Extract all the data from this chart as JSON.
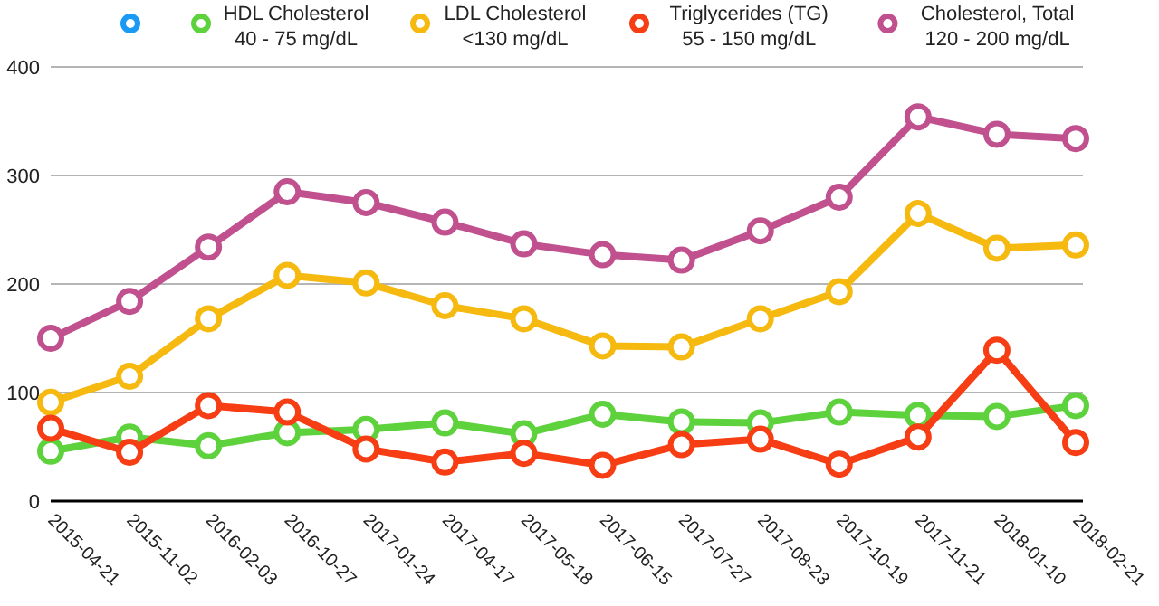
{
  "chart_data": {
    "type": "line",
    "categories": [
      "2015-04-21",
      "2015-11-02",
      "2016-02-03",
      "2016-10-27",
      "2017-01-24",
      "2017-04-17",
      "2017-05-18",
      "2017-06-15",
      "2017-07-27",
      "2017-08-23",
      "2017-10-19",
      "2017-11-21",
      "2018-01-10",
      "2018-02-21"
    ],
    "series": [
      {
        "color": "#1a9af5",
        "values": [
          null,
          null,
          null,
          null,
          null,
          null,
          null,
          null,
          null,
          null,
          null,
          null,
          null,
          null
        ]
      },
      {
        "name": "HDL Cholesterol\n40 - 75 mg/dL",
        "color": "#5dd23c",
        "values": [
          46,
          59,
          51,
          63,
          66,
          72,
          62,
          80,
          73,
          72,
          82,
          79,
          78,
          88
        ]
      },
      {
        "name": "LDL Cholesterol\n<130 mg/dL",
        "color": "#f5b90f",
        "values": [
          91,
          115,
          168,
          208,
          201,
          180,
          168,
          143,
          142,
          168,
          193,
          265,
          233,
          236
        ]
      },
      {
        "name": "Triglycerides (TG)\n55 - 150 mg/dL",
        "color": "#f73d14",
        "values": [
          67,
          45,
          88,
          82,
          48,
          36,
          44,
          33,
          52,
          57,
          34,
          59,
          139,
          54
        ]
      },
      {
        "name": "Cholesterol, Total\n120 - 200 mg/dL",
        "color": "#c0508e",
        "values": [
          150,
          184,
          234,
          285,
          275,
          257,
          237,
          227,
          222,
          249,
          280,
          354,
          338,
          334
        ]
      }
    ],
    "ylim": [
      0,
      400
    ],
    "yticks": [
      0,
      100,
      200,
      300,
      400
    ],
    "grid": "y",
    "legend": "top",
    "marker": "circle",
    "line_style": "solid"
  }
}
